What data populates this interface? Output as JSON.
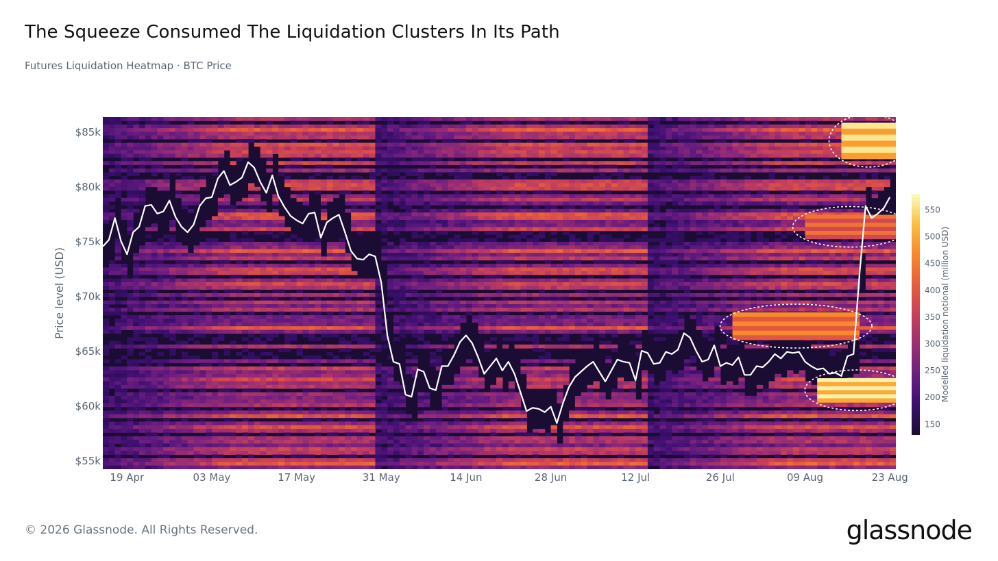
{
  "header": {
    "title": "The Squeeze Consumed The Liquidation Clusters In Its Path",
    "subtitle": "Futures Liquidation Heatmap · BTC Price"
  },
  "footer": {
    "copyright": "© 2026 Glassnode. All Rights Reserved.",
    "logo_text": "glassnode"
  },
  "chart_data": {
    "type": "heatmap",
    "title": "The Squeeze Consumed The Liquidation Clusters In Its Path",
    "subtitle": "Futures Liquidation Heatmap · BTC Price",
    "ylabel": "Price level (USD)",
    "colorbar_label": "Modelled liquidation notional (million USD)",
    "ylim": [
      54200,
      86300
    ],
    "y_ticks": [
      {
        "value": 85000,
        "label": "$85k"
      },
      {
        "value": 80000,
        "label": "$80k"
      },
      {
        "value": 75000,
        "label": "$75k"
      },
      {
        "value": 70000,
        "label": "$70k"
      },
      {
        "value": 65000,
        "label": "$65k"
      },
      {
        "value": 60000,
        "label": "$60k"
      },
      {
        "value": 55000,
        "label": "$55k"
      }
    ],
    "x_ticks": [
      {
        "day": 4,
        "label": "19 Apr"
      },
      {
        "day": 18,
        "label": "03 May"
      },
      {
        "day": 32,
        "label": "17 May"
      },
      {
        "day": 46,
        "label": "31 May"
      },
      {
        "day": 60,
        "label": "14 Jun"
      },
      {
        "day": 74,
        "label": "28 Jun"
      },
      {
        "day": 88,
        "label": "12 Jul"
      },
      {
        "day": 102,
        "label": "26 Jul"
      },
      {
        "day": 116,
        "label": "09 Aug"
      },
      {
        "day": 130,
        "label": "23 Aug"
      }
    ],
    "x_range_days": [
      0,
      131
    ],
    "colorbar": {
      "ticks": [
        150,
        200,
        250,
        300,
        350,
        400,
        450,
        500,
        550
      ],
      "range": [
        130,
        580
      ],
      "colors": [
        "#1a0c33",
        "#3b0f6f",
        "#6b1d81",
        "#9b2e72",
        "#c8405a",
        "#e85d3a",
        "#f9882a",
        "#fcbf3f",
        "#fcfdbf"
      ]
    },
    "clusters": [
      {
        "start_day": 122,
        "end_day": 131,
        "low": 82500,
        "high": 85800,
        "intensity": 560,
        "highlighted": true
      },
      {
        "start_day": 116,
        "end_day": 131,
        "low": 75200,
        "high": 77400,
        "intensity": 440,
        "highlighted": true
      },
      {
        "start_day": 104,
        "end_day": 125,
        "low": 66000,
        "high": 68500,
        "intensity": 470,
        "highlighted": true
      },
      {
        "start_day": 118,
        "end_day": 131,
        "low": 60300,
        "high": 62500,
        "intensity": 570,
        "highlighted": true
      }
    ],
    "series": [
      {
        "name": "BTC Price",
        "color": "#ffffff",
        "x": [
          0,
          1,
          2,
          3,
          4,
          5,
          6,
          7,
          8,
          9,
          10,
          11,
          12,
          13,
          14,
          15,
          16,
          17,
          18,
          19,
          20,
          21,
          22,
          23,
          24,
          25,
          26,
          27,
          28,
          29,
          30,
          31,
          32,
          33,
          34,
          35,
          36,
          37,
          38,
          39,
          40,
          41,
          42,
          43,
          44,
          45,
          46,
          47,
          48,
          49,
          50,
          51,
          52,
          53,
          54,
          55,
          56,
          57,
          58,
          59,
          60,
          61,
          62,
          63,
          64,
          65,
          66,
          67,
          68,
          69,
          70,
          71,
          72,
          73,
          74,
          75,
          76,
          77,
          78,
          79,
          80,
          81,
          82,
          83,
          84,
          85,
          86,
          87,
          88,
          89,
          90,
          91,
          92,
          93,
          94,
          95,
          96,
          97,
          98,
          99,
          100,
          101,
          102,
          103,
          104,
          105,
          106,
          107,
          108,
          109,
          110,
          111,
          112,
          113,
          114,
          115,
          116,
          117,
          118,
          119,
          120,
          121,
          122,
          123,
          124,
          125,
          126,
          127,
          128,
          129,
          130
        ],
        "y": [
          74500,
          75100,
          77100,
          75000,
          73800,
          75800,
          76300,
          78200,
          78300,
          77500,
          77700,
          78700,
          77200,
          76300,
          75800,
          76500,
          78200,
          78900,
          79000,
          80700,
          81400,
          80100,
          80400,
          80800,
          82200,
          81700,
          80400,
          79400,
          81000,
          79100,
          78100,
          77300,
          76900,
          76600,
          77500,
          77600,
          75300,
          76700,
          77100,
          77400,
          75800,
          74100,
          73400,
          73300,
          73800,
          73600,
          71200,
          66400,
          64000,
          63800,
          61000,
          60800,
          63300,
          63100,
          61600,
          61400,
          63600,
          63600,
          64600,
          65800,
          66400,
          65700,
          64400,
          62900,
          63600,
          64300,
          63200,
          64000,
          62900,
          61200,
          59500,
          59800,
          59700,
          59400,
          59900,
          58400,
          60200,
          61700,
          62600,
          63100,
          63600,
          64000,
          63100,
          62200,
          63200,
          64200,
          64000,
          63900,
          62300,
          65000,
          64800,
          63800,
          63900,
          64900,
          64700,
          65100,
          66600,
          66200,
          65000,
          64000,
          64200,
          65500,
          63600,
          63900,
          63700,
          64400,
          62800,
          62800,
          63600,
          63500,
          64000,
          64700,
          64300,
          64900,
          64800,
          64900,
          64000,
          63600,
          63300,
          63400,
          62900,
          63000,
          62700,
          64500,
          64700,
          72000,
          78200,
          77100,
          77500,
          78000,
          79000
        ]
      }
    ]
  }
}
